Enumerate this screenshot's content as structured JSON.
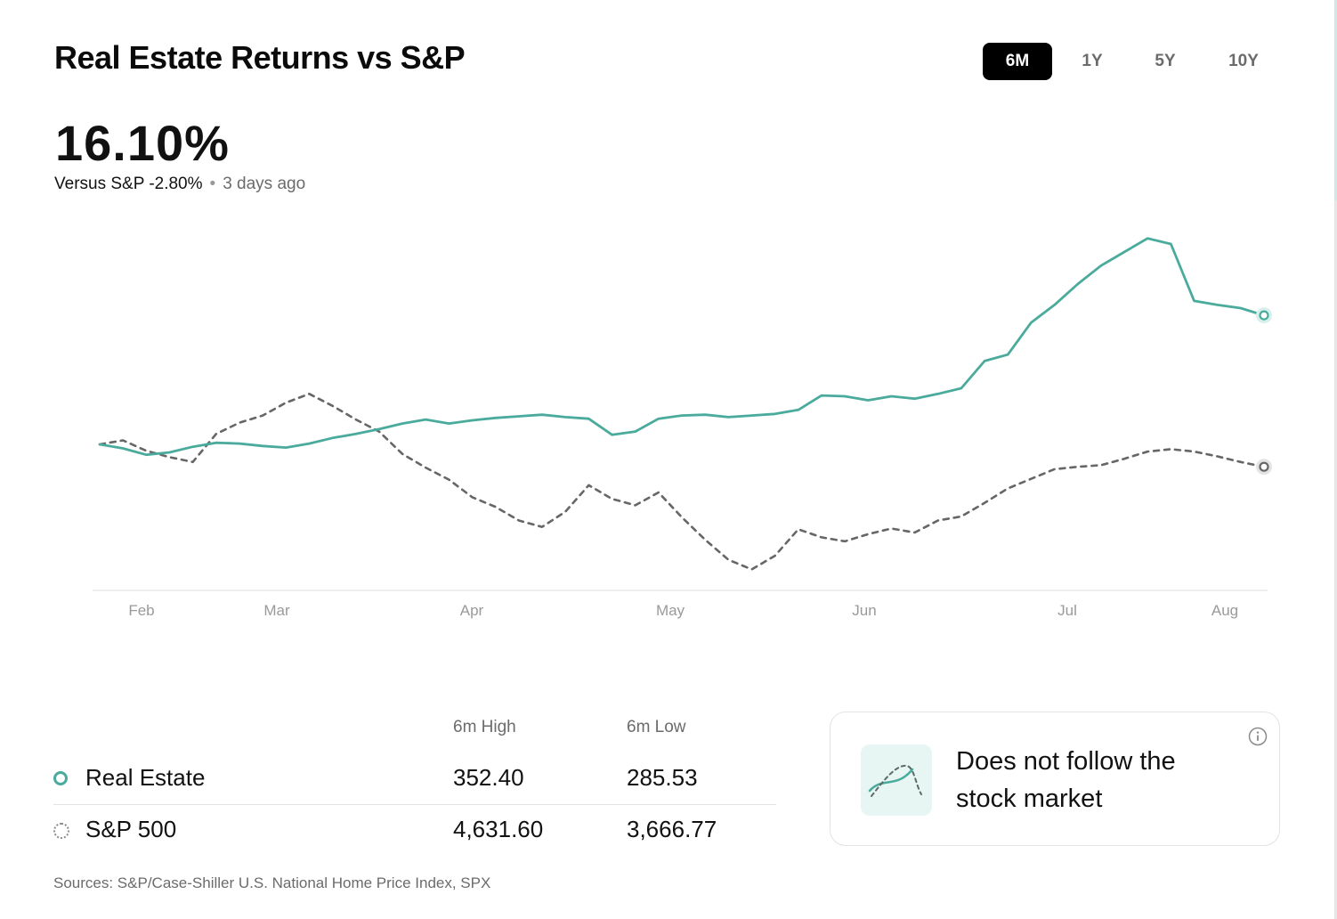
{
  "header": {
    "title": "Real Estate Returns vs S&P",
    "tabs": [
      {
        "label": "6M",
        "active": true
      },
      {
        "label": "1Y",
        "active": false
      },
      {
        "label": "5Y",
        "active": false
      },
      {
        "label": "10Y",
        "active": false
      }
    ]
  },
  "summary": {
    "value": "16.10%",
    "versus": "Versus S&P -2.80%",
    "separator": "•",
    "updated": "3 days ago"
  },
  "colors": {
    "real_estate": "#4aab9d",
    "sp500": "#666666",
    "baseline": "#e8e8e8",
    "tab_active_bg": "#000000"
  },
  "chart_data": {
    "type": "line",
    "x_ticks": [
      "Feb",
      "Mar",
      "Apr",
      "May",
      "Jun",
      "Jul",
      "Aug"
    ],
    "y_axis_visible": false,
    "grid": false,
    "x": [
      0,
      2,
      4,
      6,
      8,
      10,
      12,
      14,
      16,
      18,
      20,
      22,
      24,
      26,
      28,
      30,
      32,
      34,
      36,
      38,
      40,
      42,
      44,
      46,
      48,
      50,
      52,
      54,
      56,
      58,
      60,
      62,
      64,
      66,
      68,
      70,
      72,
      74,
      76,
      78,
      80,
      82,
      84,
      86,
      88,
      90,
      92,
      94,
      96,
      98,
      100
    ],
    "series": [
      {
        "name": "Real Estate",
        "style": "solid",
        "values": [
          0.0,
          -0.5,
          -1.3,
          -1.0,
          -0.3,
          0.2,
          0.1,
          -0.2,
          -0.4,
          0.1,
          0.8,
          1.3,
          1.9,
          2.6,
          3.1,
          2.6,
          3.0,
          3.3,
          3.5,
          3.7,
          3.4,
          3.2,
          1.2,
          1.6,
          3.2,
          3.6,
          3.7,
          3.4,
          3.6,
          3.8,
          4.3,
          6.1,
          6.0,
          5.5,
          6.0,
          5.7,
          6.3,
          7.0,
          10.4,
          11.2,
          15.2,
          17.4,
          20.0,
          22.3,
          24.0,
          25.7,
          25.0,
          17.9,
          17.4,
          17.0,
          16.1
        ]
      },
      {
        "name": "S&P 500",
        "style": "dashed",
        "values": [
          0.0,
          0.5,
          -0.8,
          -1.6,
          -2.2,
          1.3,
          2.7,
          3.6,
          5.2,
          6.3,
          4.8,
          3.1,
          1.6,
          -1.2,
          -2.9,
          -4.4,
          -6.6,
          -7.8,
          -9.5,
          -10.3,
          -8.4,
          -5.1,
          -6.8,
          -7.6,
          -6.0,
          -9.1,
          -11.9,
          -14.4,
          -15.6,
          -13.9,
          -10.6,
          -11.6,
          -12.1,
          -11.2,
          -10.5,
          -11.0,
          -9.5,
          -9.0,
          -7.3,
          -5.5,
          -4.3,
          -3.1,
          -2.8,
          -2.6,
          -1.8,
          -0.9,
          -0.6,
          -0.9,
          -1.5,
          -2.2,
          -2.8
        ]
      }
    ]
  },
  "stats": {
    "col_high": "6m High",
    "col_low": "6m Low",
    "rows": [
      {
        "label": "Real Estate",
        "high": "352.40",
        "low": "285.53"
      },
      {
        "label": "S&P 500",
        "high": "4,631.60",
        "low": "3,666.77"
      }
    ]
  },
  "info_card": {
    "text": "Does not follow the stock market",
    "icon": "crossing-lines-icon",
    "info_icon": "info-icon"
  },
  "sources": "Sources: S&P/Case-Shiller U.S. National Home Price Index, SPX"
}
